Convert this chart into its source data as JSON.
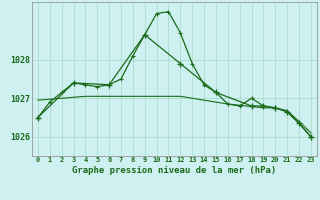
{
  "title": "Graphe pression niveau de la mer (hPa)",
  "background_color": "#cef0f0",
  "plot_bg_color": "#cef0f0",
  "grid_color": "#aaddcc",
  "line_color": "#1a6b1a",
  "ylim": [
    1025.5,
    1029.5
  ],
  "xlim": [
    -0.5,
    23.5
  ],
  "yticks": [
    1026,
    1027,
    1028
  ],
  "xticks": [
    0,
    1,
    2,
    3,
    4,
    5,
    6,
    7,
    8,
    9,
    10,
    11,
    12,
    13,
    14,
    15,
    16,
    17,
    18,
    19,
    20,
    21,
    22,
    23
  ],
  "series1_x": [
    0,
    1,
    2,
    3,
    4,
    5,
    6,
    7,
    8,
    9,
    10,
    11,
    12,
    13,
    14,
    15,
    16,
    17,
    18,
    19,
    20,
    21,
    22,
    23
  ],
  "series1_y": [
    1026.5,
    1026.9,
    1027.15,
    1027.4,
    1027.35,
    1027.3,
    1027.35,
    1027.5,
    1028.1,
    1028.65,
    1029.2,
    1029.25,
    1028.7,
    1027.9,
    1027.35,
    1027.15,
    1026.85,
    1026.8,
    1027.0,
    1026.8,
    1026.75,
    1026.65,
    1026.35,
    1026.0
  ],
  "series2_x": [
    0,
    3,
    6,
    9,
    12,
    15,
    18,
    19,
    20,
    21,
    22,
    23
  ],
  "series2_y": [
    1026.5,
    1027.4,
    1027.35,
    1028.65,
    1027.9,
    1027.15,
    1026.8,
    1026.8,
    1026.75,
    1026.65,
    1026.35,
    1026.0
  ],
  "series3_x": [
    0,
    4,
    8,
    12,
    16,
    19,
    20,
    21,
    22,
    23
  ],
  "series3_y": [
    1026.95,
    1027.05,
    1027.05,
    1027.05,
    1026.85,
    1026.75,
    1026.75,
    1026.68,
    1026.4,
    1026.1
  ]
}
